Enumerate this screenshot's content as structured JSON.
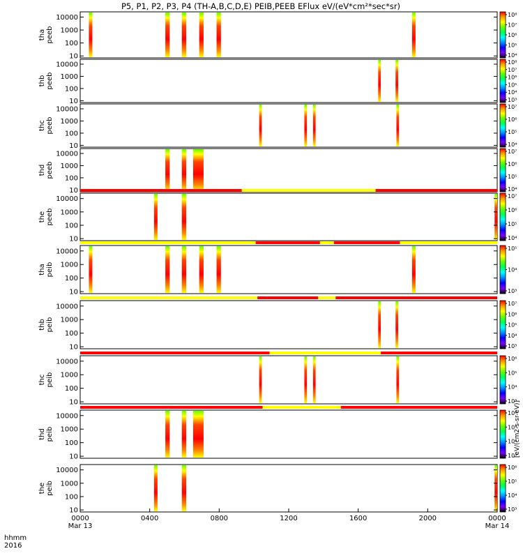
{
  "title": "P5, P1, P2, P3, P4 (TH-A,B,C,D,E) PEIB,PEEB EFlux eV/(eV*cm²*sec*sr)",
  "cbar_label": "[eV/(cm2-s-sr-eV)]",
  "time_axis": {
    "ticks": [
      {
        "line1": "0000",
        "line2": "Mar 13"
      },
      {
        "line1": "0400",
        "line2": ""
      },
      {
        "line1": "0800",
        "line2": ""
      },
      {
        "line1": "1200",
        "line2": ""
      },
      {
        "line1": "1600",
        "line2": ""
      },
      {
        "line1": "2000",
        "line2": ""
      },
      {
        "line1": "0000",
        "line2": "Mar 14"
      }
    ],
    "tick_hours": [
      0,
      4,
      8,
      12,
      16,
      20,
      24
    ],
    "left_label_line1": "hhmm",
    "left_label_line2": "2016"
  },
  "colors": {
    "red": "#ff0000",
    "yellow": "#ffff00",
    "scale": [
      "#000000",
      "#7f00ff",
      "#0000ff",
      "#0090ff",
      "#00ffff",
      "#00ff50",
      "#66ff00",
      "#ffff00",
      "#ff9900",
      "#ff0000",
      "#ffffff"
    ]
  },
  "chart_data": {
    "type": "heatmap",
    "x_unit": "hours since 0000 Mar 13 2016",
    "xlim": [
      0,
      24
    ],
    "y_scale": "log",
    "panels": [
      {
        "label1": "tha",
        "label2": "peeb",
        "yticks": [
          "10",
          "100",
          "1000",
          "10000"
        ],
        "cbar_ticks": [
          "10⁴",
          "10⁵",
          "10⁶",
          "10⁷",
          "10⁸"
        ],
        "bursts": [
          [
            0.5,
            0.7
          ],
          [
            4.9,
            5.15
          ],
          [
            5.85,
            6.1
          ],
          [
            6.85,
            7.1
          ],
          [
            7.85,
            8.1
          ],
          [
            19.1,
            19.3
          ]
        ]
      },
      {
        "label1": "thb",
        "label2": "peeb",
        "yticks": [
          "10",
          "100",
          "1000",
          "10000"
        ],
        "cbar_ticks": [
          "10³",
          "10⁴",
          "10⁵",
          "10⁶",
          "10⁷",
          "10⁸"
        ],
        "bursts": [
          [
            17.15,
            17.3
          ],
          [
            18.15,
            18.3
          ]
        ]
      },
      {
        "label1": "thc",
        "label2": "peeb",
        "yticks": [
          "10",
          "100",
          "1000",
          "10000"
        ],
        "cbar_ticks": [
          "10⁴",
          "10⁵",
          "10⁶",
          "10⁷"
        ],
        "bursts": [
          [
            10.3,
            10.45
          ],
          [
            12.9,
            13.05
          ],
          [
            13.4,
            13.55
          ],
          [
            18.2,
            18.35
          ]
        ]
      },
      {
        "label1": "thd",
        "label2": "peeb",
        "yticks": [
          "10",
          "100",
          "1000",
          "10000"
        ],
        "cbar_ticks": [
          "10⁴",
          "10⁵",
          "10⁶",
          "10⁷"
        ],
        "bursts": [
          [
            4.9,
            5.15
          ],
          [
            5.85,
            6.1
          ],
          [
            6.5,
            7.1
          ]
        ]
      },
      {
        "label1": "the",
        "label2": "peeb",
        "yticks": [
          "10",
          "100",
          "1000",
          "10000"
        ],
        "cbar_ticks": [
          "10⁴",
          "10⁵",
          "10⁶",
          "10⁷"
        ],
        "bursts": [
          [
            4.25,
            4.45
          ],
          [
            5.85,
            6.1
          ],
          [
            23.85,
            24
          ]
        ],
        "bar": [
          [
            "red",
            0,
            9.3
          ],
          [
            "yellow",
            9.3,
            17.0
          ],
          [
            "red",
            17.0,
            24
          ]
        ]
      },
      {
        "label1": "tha",
        "label2": "peib",
        "yticks": [
          "10",
          "100",
          "1000",
          "10000"
        ],
        "cbar_ticks": [
          "10³",
          "10⁴",
          "10⁵"
        ],
        "bursts": [
          [
            0.5,
            0.7
          ],
          [
            4.9,
            5.15
          ],
          [
            5.85,
            6.1
          ],
          [
            6.85,
            7.1
          ],
          [
            7.85,
            8.1
          ],
          [
            19.1,
            19.3
          ]
        ],
        "bar": [
          [
            "yellow",
            0,
            10.1
          ],
          [
            "red",
            10.1,
            13.8
          ],
          [
            "yellow",
            13.8,
            14.6
          ],
          [
            "red",
            14.6,
            18.4
          ],
          [
            "yellow",
            18.4,
            24
          ]
        ]
      },
      {
        "label1": "thb",
        "label2": "peib",
        "yticks": [
          "10",
          "100",
          "1000",
          "10000"
        ],
        "cbar_ticks": [
          "10³",
          "10⁴",
          "10⁵",
          "10⁶",
          "10⁷"
        ],
        "bursts": [
          [
            17.15,
            17.3
          ],
          [
            18.15,
            18.3
          ]
        ],
        "bar": [
          [
            "yellow",
            0,
            10.2
          ],
          [
            "red",
            10.2,
            13.7
          ],
          [
            "yellow",
            13.7,
            14.7
          ],
          [
            "red",
            14.7,
            24
          ]
        ]
      },
      {
        "label1": "thc",
        "label2": "peib",
        "yticks": [
          "10",
          "100",
          "1000",
          "10000"
        ],
        "cbar_ticks": [
          "10³",
          "10⁴",
          "10⁵",
          "10⁶"
        ],
        "bursts": [
          [
            10.3,
            10.45
          ],
          [
            12.9,
            13.05
          ],
          [
            13.4,
            13.55
          ],
          [
            18.2,
            18.35
          ]
        ],
        "bar": [
          [
            "red",
            0,
            10.9
          ],
          [
            "yellow",
            10.9,
            17.3
          ],
          [
            "red",
            17.3,
            24
          ]
        ]
      },
      {
        "label1": "thd",
        "label2": "peib",
        "yticks": [
          "10",
          "100",
          "1000",
          "10000"
        ],
        "cbar_ticks": [
          "10³",
          "10⁴",
          "10⁵",
          "10⁶"
        ],
        "bursts": [
          [
            4.9,
            5.15
          ],
          [
            5.85,
            6.1
          ],
          [
            6.5,
            7.1
          ]
        ],
        "bar": [
          [
            "red",
            0,
            10.5
          ],
          [
            "yellow",
            10.5,
            15.0
          ],
          [
            "red",
            15.0,
            24
          ]
        ]
      },
      {
        "label1": "the",
        "label2": "peib",
        "yticks": [
          "10",
          "100",
          "1000",
          "10000"
        ],
        "cbar_ticks": [
          "10³",
          "10⁴",
          "10⁵",
          "10⁶"
        ],
        "bursts": [
          [
            4.25,
            4.45
          ],
          [
            5.85,
            6.1
          ],
          [
            23.85,
            24
          ]
        ]
      }
    ]
  }
}
